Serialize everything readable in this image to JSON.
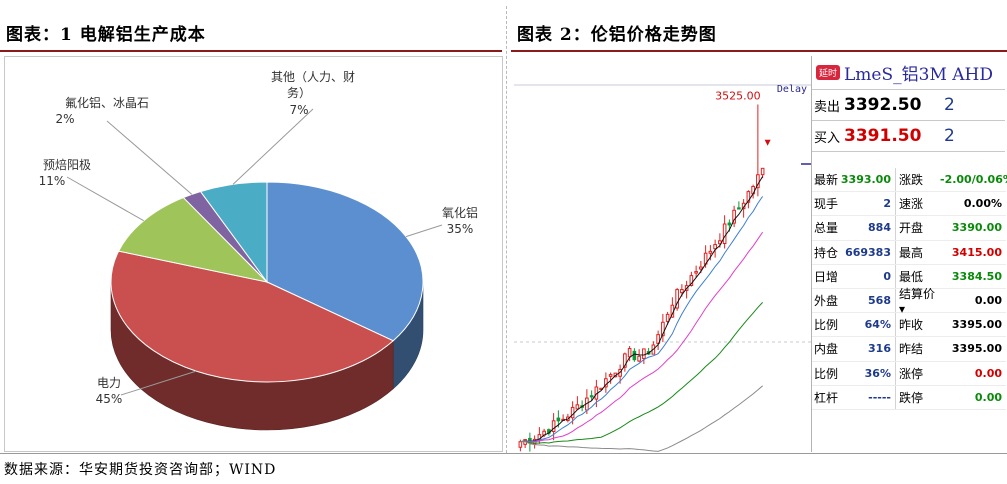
{
  "left_title": "图表：1 电解铝生产成本",
  "right_title": "图表 2：伦铝价格走势图",
  "source": "数据来源：华安期货投资咨询部；WIND",
  "chart_data": [
    {
      "type": "pie",
      "style": "3d",
      "slices": [
        {
          "name": "氧化铝",
          "value": 35,
          "label": "35%",
          "color": "#5b8fcf"
        },
        {
          "name": "电力",
          "value": 45,
          "label": "45%",
          "color": "#c9504f"
        },
        {
          "name": "预焙阳极",
          "value": 11,
          "label": "11%",
          "color": "#9ec45a"
        },
        {
          "name": "氟化铝、冰晶石",
          "value": 2,
          "label": "2%",
          "color": "#8064a2"
        },
        {
          "name": "其他（人力、财务）",
          "value": 7,
          "label": "7%",
          "color": "#4bacc6"
        }
      ]
    },
    {
      "type": "candlestick",
      "symbol": "LmeS_铝3M AHD",
      "corner_tag": "Delay",
      "peak_label": "3525.00",
      "peak_value": 3525.0,
      "ylim": [
        2990,
        3560
      ],
      "series": [
        {
          "name": "MA-fast",
          "color": "#111111"
        },
        {
          "name": "MA-mid",
          "color": "#3d7fd1"
        },
        {
          "name": "MA-slow",
          "color": "#e040c8"
        },
        {
          "name": "MA-long",
          "color": "#178a17"
        },
        {
          "name": "MA-longest",
          "color": "#8a8a8a"
        }
      ]
    }
  ],
  "quote": {
    "badge": "延时",
    "name": "LmeS_铝3M AHD",
    "ask_label": "卖出",
    "ask_price": "3392.50",
    "ask_vol": "2",
    "bid_label": "买入",
    "bid_price": "3391.50",
    "bid_vol": "2",
    "rows": [
      {
        "l1": "最新",
        "v1": "3393.00",
        "c1": "c-green",
        "l2": "涨跌",
        "v2": "-2.00/0.06%",
        "c2": "c-green"
      },
      {
        "l1": "现手",
        "v1": "2",
        "c1": "c-blue",
        "l2": "速涨",
        "v2": "0.00%",
        "c2": "c-black"
      },
      {
        "l1": "总量",
        "v1": "884",
        "c1": "c-blue",
        "l2": "开盘",
        "v2": "3390.00",
        "c2": "c-green"
      },
      {
        "l1": "持仓",
        "v1": "669383",
        "c1": "c-blue",
        "l2": "最高",
        "v2": "3415.00",
        "c2": "c-red"
      },
      {
        "l1": "日增",
        "v1": "0",
        "c1": "c-blue",
        "l2": "最低",
        "v2": "3384.50",
        "c2": "c-green"
      },
      {
        "l1": "外盘",
        "v1": "568",
        "c1": "c-blue",
        "l2": "结算价▾",
        "v2": "0.00",
        "c2": "c-black"
      },
      {
        "l1": "比例",
        "v1": "64%",
        "c1": "c-blue",
        "l2": "昨收",
        "v2": "3395.00",
        "c2": "c-black"
      },
      {
        "l1": "内盘",
        "v1": "316",
        "c1": "c-blue",
        "l2": "昨结",
        "v2": "3395.00",
        "c2": "c-black"
      },
      {
        "l1": "比例",
        "v1": "36%",
        "c1": "c-blue",
        "l2": "涨停",
        "v2": "0.00",
        "c2": "c-red"
      },
      {
        "l1": "杠杆",
        "v1": "-----",
        "c1": "c-blue",
        "l2": "跌停",
        "v2": "0.00",
        "c2": "c-green"
      }
    ]
  }
}
